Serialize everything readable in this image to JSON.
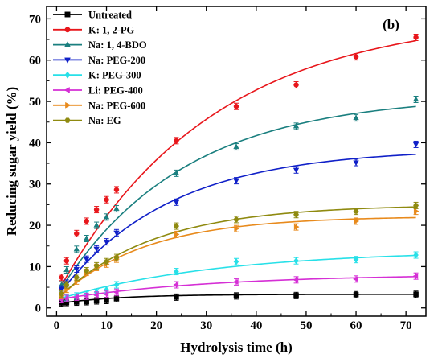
{
  "chart_data": {
    "type": "scatter",
    "panel_label": "(b)",
    "xlabel": "Hydrolysis time (h)",
    "ylabel": "Reducing sugar yield (%)",
    "xlim": [
      -2,
      74
    ],
    "ylim": [
      -2,
      73
    ],
    "xticks": [
      0,
      10,
      20,
      30,
      40,
      50,
      60,
      70
    ],
    "yticks": [
      0,
      10,
      20,
      30,
      40,
      50,
      60,
      70
    ],
    "legend_position": "top-left",
    "fit_curves": true,
    "series": [
      {
        "name": "Untreated",
        "color": "#000000",
        "marker": "square",
        "x": [
          1,
          2,
          4,
          6,
          8,
          10,
          12,
          24,
          36,
          48,
          60,
          72
        ],
        "y": [
          1.2,
          1.3,
          1.4,
          1.5,
          1.7,
          1.8,
          2.2,
          2.6,
          2.9,
          3.0,
          3.2,
          3.3
        ],
        "fit": {
          "a": 3.3,
          "k": 0.08,
          "b": 1.0
        }
      },
      {
        "name": "K: 1, 2-PG",
        "color": "#e8161b",
        "marker": "circle",
        "x": [
          1,
          2,
          4,
          6,
          8,
          10,
          12,
          24,
          36,
          48,
          60,
          72
        ],
        "y": [
          7.4,
          11.4,
          18.0,
          21.0,
          23.8,
          26.2,
          28.6,
          40.5,
          48.8,
          54.0,
          60.8,
          65.5
        ],
        "fit": {
          "a": 71.2,
          "k": 0.0326,
          "b": 3.3
        }
      },
      {
        "name": "Na: 1, 4-BDO",
        "color": "#1a7f7f",
        "marker": "triangle-up",
        "x": [
          1,
          2,
          4,
          6,
          8,
          10,
          12,
          24,
          36,
          48,
          60,
          72
        ],
        "y": [
          5.6,
          9.2,
          14.2,
          16.8,
          20.0,
          22.0,
          24.0,
          32.6,
          39.0,
          44.0,
          46.0,
          50.5
        ],
        "fit": {
          "a": 51.5,
          "k": 0.04,
          "b": 3.0
        }
      },
      {
        "name": "Na: PEG-200",
        "color": "#1020c8",
        "marker": "triangle-down",
        "x": [
          1,
          2,
          4,
          6,
          8,
          10,
          12,
          24,
          36,
          48,
          60,
          72
        ],
        "y": [
          4.6,
          6.0,
          9.4,
          11.8,
          14.3,
          16.0,
          18.2,
          25.6,
          30.8,
          33.4,
          35.2,
          39.6
        ],
        "fit": {
          "a": 38.6,
          "k": 0.045,
          "b": 2.5
        }
      },
      {
        "name": "K: PEG-300",
        "color": "#27e0e8",
        "marker": "diamond",
        "x": [
          1,
          2,
          4,
          6,
          8,
          10,
          12,
          24,
          36,
          48,
          60,
          72
        ],
        "y": [
          2.2,
          2.5,
          2.9,
          3.2,
          3.8,
          4.4,
          5.6,
          8.8,
          11.2,
          11.4,
          11.7,
          12.8
        ],
        "fit": {
          "a": 14.0,
          "k": 0.031,
          "b": 2.0
        }
      },
      {
        "name": "Li: PEG-400",
        "color": "#d52fd5",
        "marker": "triangle-left",
        "x": [
          1,
          2,
          4,
          6,
          8,
          10,
          12,
          24,
          36,
          48,
          60,
          72
        ],
        "y": [
          2.0,
          2.3,
          2.6,
          2.8,
          3.1,
          3.3,
          3.8,
          5.6,
          6.3,
          6.8,
          7.0,
          7.7
        ],
        "fit": {
          "a": 8.2,
          "k": 0.032,
          "b": 2.0
        }
      },
      {
        "name": "Na: PEG-600",
        "color": "#e88a1c",
        "marker": "triangle-right",
        "x": [
          1,
          2,
          4,
          6,
          8,
          10,
          12,
          24,
          36,
          48,
          60,
          72
        ],
        "y": [
          3.0,
          4.5,
          6.5,
          8.6,
          9.8,
          10.6,
          11.8,
          17.8,
          19.2,
          19.6,
          21.0,
          23.4
        ],
        "fit": {
          "a": 22.2,
          "k": 0.057,
          "b": 2.0
        }
      },
      {
        "name": "Na: EG",
        "color": "#8f8a10",
        "marker": "hexagon",
        "x": [
          1,
          2,
          4,
          6,
          8,
          10,
          12,
          24,
          36,
          48,
          60,
          72
        ],
        "y": [
          3.4,
          5.6,
          7.4,
          9.0,
          10.2,
          11.2,
          12.2,
          19.8,
          21.4,
          22.6,
          23.4,
          24.8
        ],
        "fit": {
          "a": 25.0,
          "k": 0.052,
          "b": 2.0
        }
      }
    ]
  }
}
